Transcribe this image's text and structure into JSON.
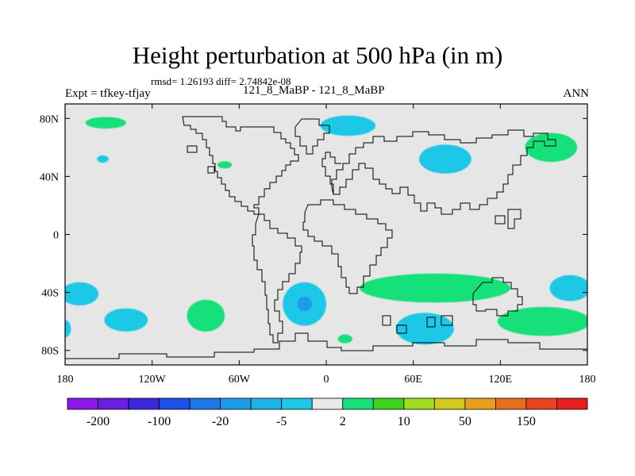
{
  "title": "Height perturbation at 500 hPa (in m)",
  "stats": "rmsd= 1.26193 diff= 2.74842e-08",
  "left_label": "Expt = tfkey-tfjay",
  "center_label": "121_8_MaBP - 121_8_MaBP",
  "right_label": "ANN",
  "chart_data": {
    "type": "contour-map",
    "projection": "cylindrical-equidistant",
    "variable": "500 hPa height perturbation",
    "units": "m",
    "background_color": "#e6e6e6",
    "xlim": [
      -180,
      180
    ],
    "ylim": [
      -90,
      90
    ],
    "x_ticks": [
      {
        "value": -180,
        "label": "180"
      },
      {
        "value": -120,
        "label": "120W"
      },
      {
        "value": -60,
        "label": "60W"
      },
      {
        "value": 0,
        "label": "0"
      },
      {
        "value": 60,
        "label": "60E"
      },
      {
        "value": 120,
        "label": "120E"
      },
      {
        "value": 180,
        "label": "180"
      }
    ],
    "y_ticks": [
      {
        "value": 80,
        "label": "80N"
      },
      {
        "value": 40,
        "label": "40N"
      },
      {
        "value": 0,
        "label": "0"
      },
      {
        "value": -40,
        "label": "40S"
      },
      {
        "value": -80,
        "label": "80S"
      }
    ],
    "colorbar": {
      "colors": [
        "#8c1ae6",
        "#6a1ee0",
        "#3c28d8",
        "#1e4fe6",
        "#1e78e6",
        "#1e9be6",
        "#1eb4e6",
        "#1ec8e6",
        "#e8e8e8",
        "#19e07a",
        "#3cd21e",
        "#a0dc1e",
        "#d2c81e",
        "#e6a01e",
        "#e66e1e",
        "#e6461e",
        "#e61e1e"
      ],
      "labels": [
        {
          "boundary": 1,
          "text": "-200"
        },
        {
          "boundary": 3,
          "text": "-100"
        },
        {
          "boundary": 5,
          "text": "-20"
        },
        {
          "boundary": 7,
          "text": "-5"
        },
        {
          "boundary": 9,
          "text": "2"
        },
        {
          "boundary": 11,
          "text": "10"
        },
        {
          "boundary": 13,
          "text": "50"
        },
        {
          "boundary": 15,
          "text": "150"
        }
      ]
    },
    "anomalies": [
      {
        "class": "positive",
        "color": "#19e07a",
        "lon": -152,
        "lat": 77,
        "rx": 14,
        "ry": 4
      },
      {
        "class": "negative",
        "color": "#1ec8e6",
        "lon": -154,
        "lat": 52,
        "rx": 4,
        "ry": 2.5
      },
      {
        "class": "positive",
        "color": "#19e07a",
        "lon": -70,
        "lat": 48,
        "rx": 5,
        "ry": 2.5
      },
      {
        "class": "negative",
        "color": "#1ec8e6",
        "lon": 15,
        "lat": 75,
        "rx": 19,
        "ry": 7
      },
      {
        "class": "negative",
        "color": "#1ec8e6",
        "lon": 82,
        "lat": 52,
        "rx": 18,
        "ry": 10
      },
      {
        "class": "positive",
        "color": "#19e07a",
        "lon": 155,
        "lat": 60,
        "rx": 18,
        "ry": 10
      },
      {
        "class": "negative",
        "color": "#1ec8e6",
        "lon": -170,
        "lat": -41,
        "rx": 13,
        "ry": 8
      },
      {
        "class": "negative",
        "color": "#1ec8e6",
        "lon": -138,
        "lat": -59,
        "rx": 15,
        "ry": 8
      },
      {
        "class": "positive",
        "color": "#19e07a",
        "lon": -83,
        "lat": -56,
        "rx": 13,
        "ry": 11
      },
      {
        "class": "negative",
        "color": "#1ec8e6",
        "lon": -15,
        "lat": -48,
        "rx": 15,
        "ry": 15
      },
      {
        "class": "negative",
        "color": "#1e9be6",
        "lon": -15,
        "lat": -48,
        "rx": 5,
        "ry": 5
      },
      {
        "class": "positive",
        "color": "#19e07a",
        "lon": 13,
        "lat": -72,
        "rx": 5,
        "ry": 3
      },
      {
        "class": "negative",
        "color": "#1ec8e6",
        "lon": 68,
        "lat": -65,
        "rx": 20,
        "ry": 11
      },
      {
        "class": "positive",
        "color": "#19e07a",
        "lon": 75,
        "lat": -37,
        "rx": 52,
        "ry": 10
      },
      {
        "class": "positive",
        "color": "#19e07a",
        "lon": 150,
        "lat": -60,
        "rx": 32,
        "ry": 10
      },
      {
        "class": "negative",
        "color": "#1ec8e6",
        "lon": 168,
        "lat": -37,
        "rx": 14,
        "ry": 9
      },
      {
        "class": "negative",
        "color": "#1ec8e6",
        "lon": -180,
        "lat": -65,
        "rx": 4,
        "ry": 6
      }
    ]
  }
}
